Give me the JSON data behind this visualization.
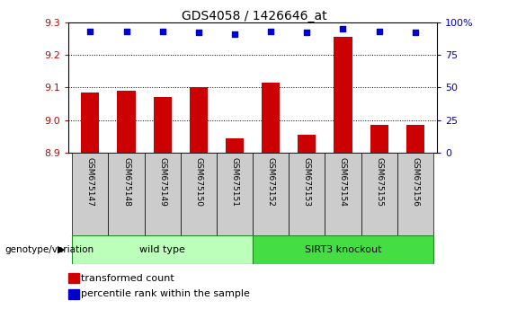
{
  "title": "GDS4058 / 1426646_at",
  "samples": [
    "GSM675147",
    "GSM675148",
    "GSM675149",
    "GSM675150",
    "GSM675151",
    "GSM675152",
    "GSM675153",
    "GSM675154",
    "GSM675155",
    "GSM675156"
  ],
  "transformed_count": [
    9.085,
    9.09,
    9.07,
    9.1,
    8.945,
    9.115,
    8.955,
    9.255,
    8.985,
    8.985
  ],
  "percentile_rank": [
    93,
    93,
    93,
    92,
    91,
    93,
    92,
    95,
    93,
    92
  ],
  "ylim_left": [
    8.9,
    9.3
  ],
  "ylim_right": [
    0,
    100
  ],
  "yticks_left": [
    8.9,
    9.0,
    9.1,
    9.2,
    9.3
  ],
  "yticks_right": [
    0,
    25,
    50,
    75,
    100
  ],
  "bar_color": "#cc0000",
  "dot_color": "#0000cc",
  "wild_type_label": "wild type",
  "knockout_label": "SIRT3 knockout",
  "wild_type_color": "#bbffbb",
  "knockout_color": "#44dd44",
  "group_label": "genotype/variation",
  "legend_bar_label": "transformed count",
  "legend_dot_label": "percentile rank within the sample",
  "label_area_color": "#cccccc",
  "fig_width": 5.65,
  "fig_height": 3.54,
  "dpi": 100
}
